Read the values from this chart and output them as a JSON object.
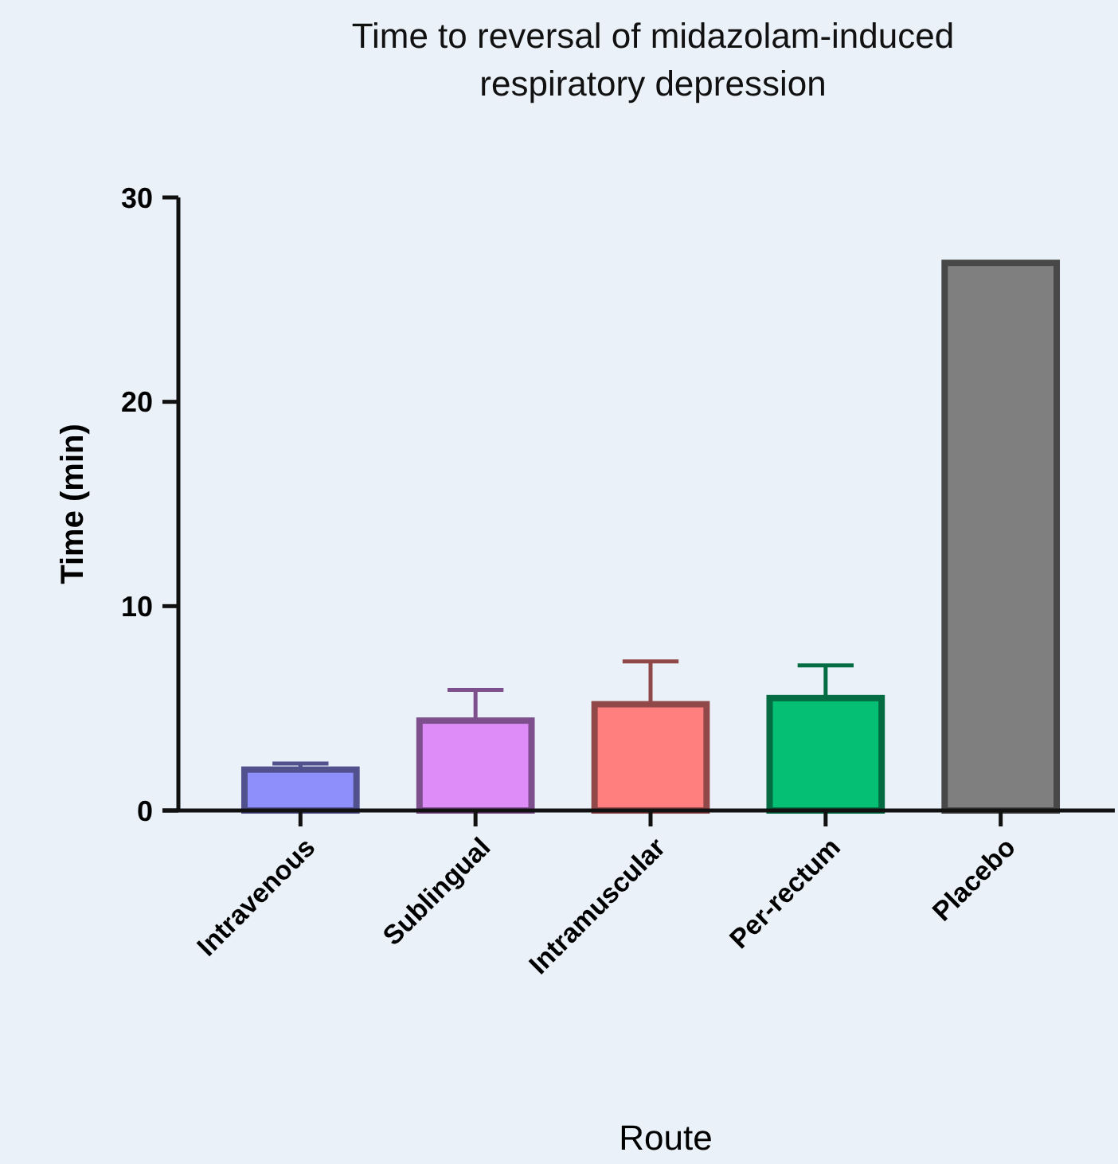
{
  "chart_data": {
    "type": "bar",
    "title": "Time to reversal of midazolam-induced\nrespiratory depression",
    "xlabel": "Route",
    "ylabel": "Time (min)",
    "categories": [
      "Intravenous",
      "Sublingual",
      "Intramuscular",
      "Per-rectum",
      "Placebo"
    ],
    "values": [
      2.0,
      4.4,
      5.2,
      5.5,
      26.8
    ],
    "errors": [
      [
        2.0,
        2.3
      ],
      [
        4.4,
        5.9
      ],
      [
        5.2,
        7.3
      ],
      [
        5.5,
        7.1
      ],
      null
    ],
    "colors": [
      "#8f8ffc",
      "#de8cf8",
      "#ff7f7f",
      "#05bf75",
      "#7f7f7f"
    ],
    "ylim": [
      0,
      30
    ],
    "yticks": [
      0,
      10,
      20,
      30
    ],
    "grid": false
  }
}
